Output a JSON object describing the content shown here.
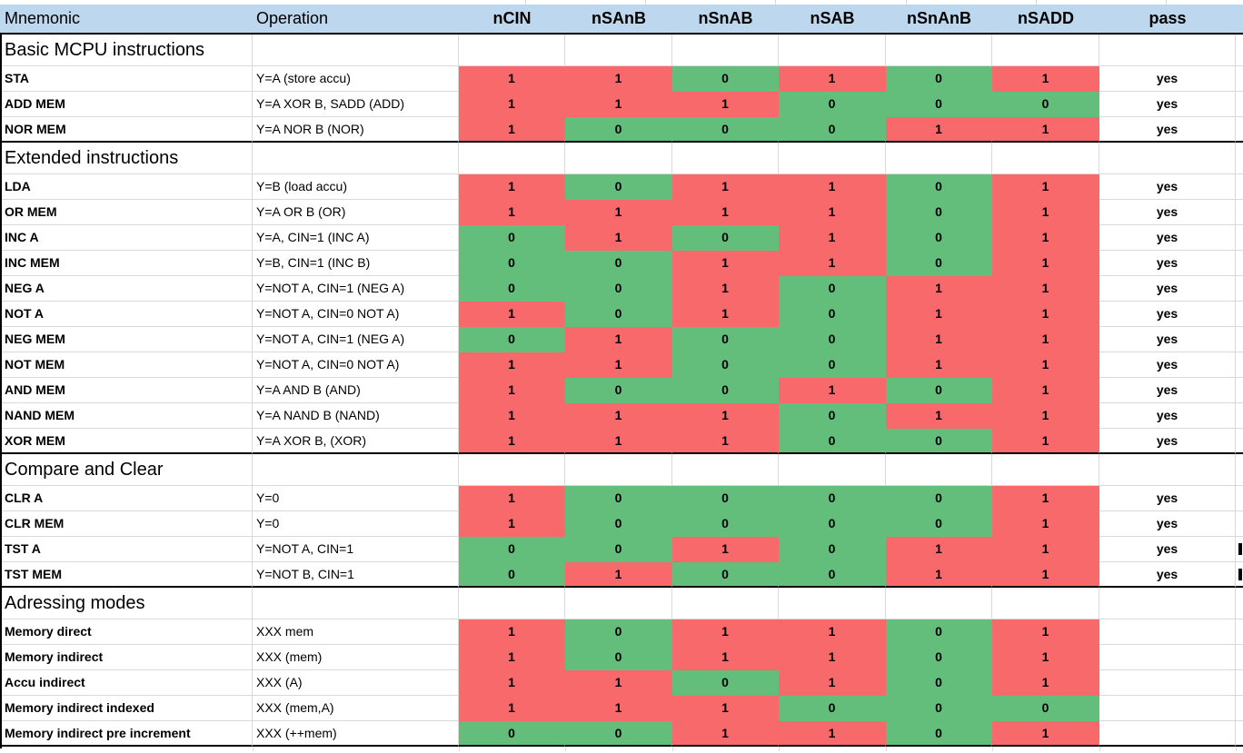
{
  "colors": {
    "bit_one_red": "#F8696B",
    "bit_zero_green": "#63BE7B",
    "header_blue": "#BDD7EE",
    "gridline_gray": "#D9D9D9",
    "section_border_black": "#000000"
  },
  "table": {
    "headers": [
      "Mnemonic",
      "Operation",
      "nCIN",
      "nSAnB",
      "nSnAB",
      "nSAB",
      "nSnAnB",
      "nSADD",
      "pass"
    ],
    "sections": [
      {
        "title": "Basic MCPU instructions",
        "rows": [
          {
            "mnemonic": "STA",
            "operation": "Y=A (store accu)",
            "bits": [
              1,
              1,
              0,
              1,
              0,
              1
            ],
            "pass": "yes"
          },
          {
            "mnemonic": "ADD MEM",
            "operation": "Y=A XOR B, SADD (ADD)",
            "bits": [
              1,
              1,
              1,
              0,
              0,
              0
            ],
            "pass": "yes"
          },
          {
            "mnemonic": "NOR MEM",
            "operation": "Y=A NOR B (NOR)",
            "bits": [
              1,
              0,
              0,
              0,
              1,
              1
            ],
            "pass": "yes"
          }
        ]
      },
      {
        "title": "Extended instructions",
        "rows": [
          {
            "mnemonic": "LDA",
            "operation": "Y=B (load accu)",
            "bits": [
              1,
              0,
              1,
              1,
              0,
              1
            ],
            "pass": "yes"
          },
          {
            "mnemonic": "OR MEM",
            "operation": "Y=A OR B (OR)",
            "bits": [
              1,
              1,
              1,
              1,
              0,
              1
            ],
            "pass": "yes"
          },
          {
            "mnemonic": "INC A",
            "operation": "Y=A, CIN=1 (INC A)",
            "bits": [
              0,
              1,
              0,
              1,
              0,
              1
            ],
            "pass": "yes"
          },
          {
            "mnemonic": "INC MEM",
            "operation": "Y=B, CIN=1 (INC B)",
            "bits": [
              0,
              0,
              1,
              1,
              0,
              1
            ],
            "pass": "yes"
          },
          {
            "mnemonic": "NEG A",
            "operation": "Y=NOT A, CIN=1 (NEG A)",
            "bits": [
              0,
              0,
              1,
              0,
              1,
              1
            ],
            "pass": "yes"
          },
          {
            "mnemonic": "NOT A",
            "operation": "Y=NOT A, CIN=0 NOT A)",
            "bits": [
              1,
              0,
              1,
              0,
              1,
              1
            ],
            "pass": "yes"
          },
          {
            "mnemonic": "NEG MEM",
            "operation": "Y=NOT A, CIN=1 (NEG A)",
            "bits": [
              0,
              1,
              0,
              0,
              1,
              1
            ],
            "pass": "yes"
          },
          {
            "mnemonic": "NOT MEM",
            "operation": "Y=NOT A, CIN=0 NOT A)",
            "bits": [
              1,
              1,
              0,
              0,
              1,
              1
            ],
            "pass": "yes"
          },
          {
            "mnemonic": "AND MEM",
            "operation": "Y=A AND B (AND)",
            "bits": [
              1,
              0,
              0,
              1,
              0,
              1
            ],
            "pass": "yes"
          },
          {
            "mnemonic": "NAND MEM",
            "operation": "Y=A NAND B (NAND)",
            "bits": [
              1,
              1,
              1,
              0,
              1,
              1
            ],
            "pass": "yes"
          },
          {
            "mnemonic": "XOR MEM",
            "operation": "Y=A XOR B, (XOR)",
            "bits": [
              1,
              1,
              1,
              0,
              0,
              1
            ],
            "pass": "yes"
          }
        ]
      },
      {
        "title": "Compare and Clear",
        "rows": [
          {
            "mnemonic": "CLR A",
            "operation": "Y=0",
            "bits": [
              1,
              0,
              0,
              0,
              0,
              1
            ],
            "pass": "yes"
          },
          {
            "mnemonic": "CLR MEM",
            "operation": "Y=0",
            "bits": [
              1,
              0,
              0,
              0,
              0,
              1
            ],
            "pass": "yes"
          },
          {
            "mnemonic": "TST A",
            "operation": "Y=NOT A, CIN=1",
            "bits": [
              0,
              0,
              1,
              0,
              1,
              1
            ],
            "pass": "yes",
            "clipped": true
          },
          {
            "mnemonic": "TST MEM",
            "operation": "Y=NOT B, CIN=1",
            "bits": [
              0,
              1,
              0,
              0,
              1,
              1
            ],
            "pass": "yes",
            "clipped": true
          }
        ]
      },
      {
        "title": "Adressing modes",
        "rows": [
          {
            "mnemonic": "Memory direct",
            "operation": "XXX mem",
            "bits": [
              1,
              0,
              1,
              1,
              0,
              1
            ],
            "pass": ""
          },
          {
            "mnemonic": "Memory indirect",
            "operation": "XXX (mem)",
            "bits": [
              1,
              0,
              1,
              1,
              0,
              1
            ],
            "pass": ""
          },
          {
            "mnemonic": "Accu indirect",
            "operation": "XXX (A)",
            "bits": [
              1,
              1,
              0,
              1,
              0,
              1
            ],
            "pass": ""
          },
          {
            "mnemonic": "Memory indirect indexed",
            "operation": "XXX (mem,A)",
            "bits": [
              1,
              1,
              1,
              0,
              0,
              0
            ],
            "pass": ""
          },
          {
            "mnemonic": "Memory indirect pre increment",
            "operation": "XXX (++mem)",
            "bits": [
              0,
              0,
              1,
              1,
              0,
              1
            ],
            "pass": ""
          }
        ]
      }
    ]
  }
}
